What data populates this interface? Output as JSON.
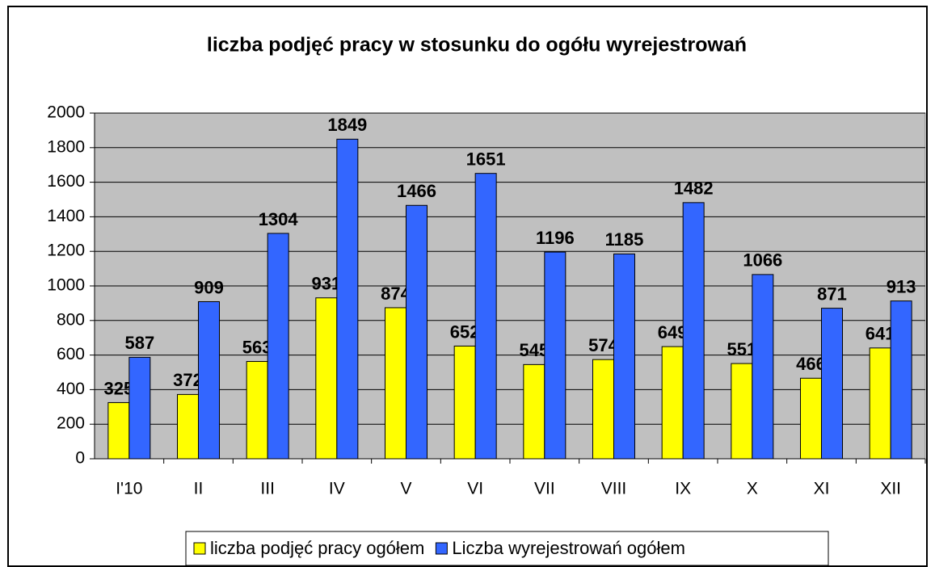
{
  "chart_data": {
    "type": "bar",
    "title": "liczba podjęć pracy w stosunku do ogółu wyrejestrowań",
    "categories": [
      "I'10",
      "II",
      "III",
      "IV",
      "V",
      "VI",
      "VII",
      "VIII",
      "IX",
      "X",
      "XI",
      "XII"
    ],
    "series": [
      {
        "name": "liczba podjęć pracy ogółem",
        "color": "#ffff00",
        "label_color": "#000000",
        "values": [
          325,
          372,
          563,
          931,
          874,
          652,
          545,
          574,
          649,
          551,
          466,
          641
        ]
      },
      {
        "name": "Liczba wyrejestrowań ogółem",
        "color": "#3366ff",
        "label_color": "#1a1a80",
        "values": [
          587,
          909,
          1304,
          1849,
          1466,
          1651,
          1196,
          1185,
          1482,
          1066,
          871,
          913
        ]
      }
    ],
    "ylim": [
      0,
      2000
    ],
    "yticks": [
      0,
      200,
      400,
      600,
      800,
      1000,
      1200,
      1400,
      1600,
      1800,
      2000
    ],
    "grid": true,
    "legend": "bottom"
  }
}
